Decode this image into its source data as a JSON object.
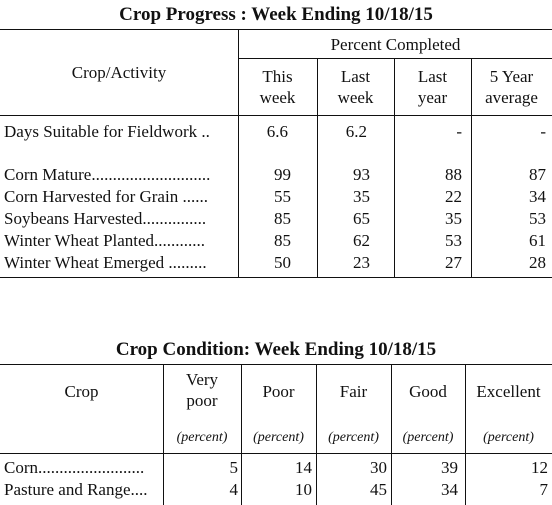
{
  "progress": {
    "title": "Crop Progress : Week Ending 10/18/15",
    "header": {
      "crop_activity": "Crop/Activity",
      "percent_completed": "Percent Completed",
      "this_week": [
        "This",
        "week"
      ],
      "last_week": [
        "Last",
        "week"
      ],
      "last_year": [
        "Last",
        "year"
      ],
      "five_year": [
        "5 Year",
        "average"
      ]
    },
    "rows": [
      {
        "label": "Days Suitable for Fieldwork ..",
        "this_week": "6.6",
        "last_week": "6.2",
        "last_year": "-",
        "five_year": "-"
      },
      {
        "label": "Corn Mature............................",
        "this_week": "99",
        "last_week": "93",
        "last_year": "88",
        "five_year": "87"
      },
      {
        "label": "Corn Harvested for Grain ......",
        "this_week": "55",
        "last_week": "35",
        "last_year": "22",
        "five_year": "34"
      },
      {
        "label": "Soybeans Harvested...............",
        "this_week": "85",
        "last_week": "65",
        "last_year": "35",
        "five_year": "53"
      },
      {
        "label": "Winter Wheat Planted............",
        "this_week": "85",
        "last_week": "62",
        "last_year": "53",
        "five_year": "61"
      },
      {
        "label": "Winter Wheat Emerged .........",
        "this_week": "50",
        "last_week": "23",
        "last_year": "27",
        "five_year": "28"
      }
    ]
  },
  "condition": {
    "title": "Crop Condition: Week Ending 10/18/15",
    "header": {
      "crop": "Crop",
      "very_poor": [
        "Very",
        "poor"
      ],
      "poor": "Poor",
      "fair": "Fair",
      "good": "Good",
      "excellent": "Excellent",
      "unit": "(percent)"
    },
    "rows": [
      {
        "label": "Corn.........................",
        "very_poor": "5",
        "poor": "14",
        "fair": "30",
        "good": "39",
        "excellent": "12"
      },
      {
        "label": "Pasture and Range....",
        "very_poor": "4",
        "poor": "10",
        "fair": "45",
        "good": "34",
        "excellent": "7"
      }
    ]
  }
}
